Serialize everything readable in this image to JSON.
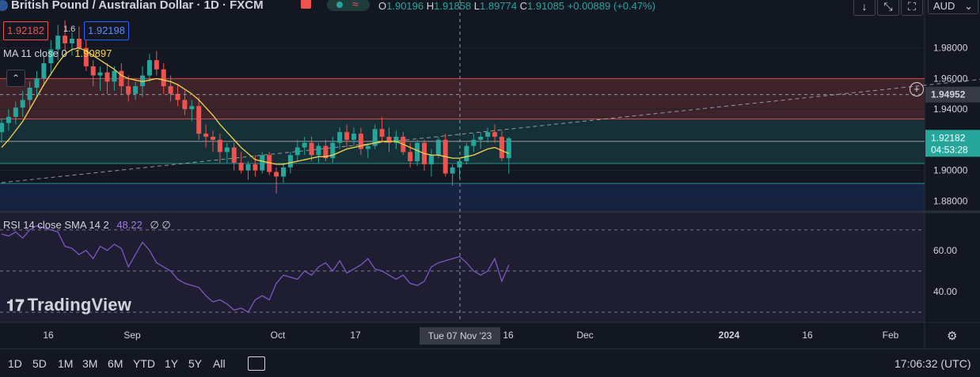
{
  "header": {
    "symbol_title": "British Pound / Australian Dollar · 1D · FXCM",
    "ohlc": {
      "o_label": "O",
      "o_value": "1.90196",
      "h_label": "H",
      "h_value": "1.91858",
      "l_label": "L",
      "l_value": "1.89774",
      "c_label": "C",
      "c_value": "1.91085",
      "change": "+0.00889 (+0.47%)"
    },
    "sell_price": "1.92182",
    "spread": "1.6",
    "buy_price": "1.92198",
    "currency": "AUD"
  },
  "ma_legend": {
    "text": "MA 11 close 0",
    "value": "1.90897"
  },
  "rsi_legend": {
    "text": "RSI 14 close SMA 14 2",
    "value": "48.22",
    "extra": "∅ ∅"
  },
  "price_axis": {
    "ticks": [
      "1.98000",
      "1.96000",
      "1.94000",
      "1.92000",
      "1.90000",
      "1.88000"
    ],
    "crosshair_label": "1.94952",
    "last_price": "1.92182",
    "countdown": "04:53:28"
  },
  "rsi_axis": {
    "ticks": [
      "60.00",
      "40.00"
    ]
  },
  "time_axis": {
    "ticks": [
      "16",
      "Sep",
      "Oct",
      "17",
      "16",
      "Dec",
      "2024",
      "16",
      "Feb"
    ],
    "crosshair_label": "Tue 07 Nov '23"
  },
  "timeframes": [
    "1D",
    "5D",
    "1M",
    "3M",
    "6M",
    "YTD",
    "1Y",
    "5Y",
    "All"
  ],
  "clock": "17:06:32 (UTC)",
  "watermark": "TradingView",
  "colors": {
    "up": "#26a69a",
    "down": "#ef5350",
    "ma": "#f7d54a",
    "rsi": "#7e57c2",
    "bg": "#131722"
  },
  "chart_data": {
    "type": "candlestick",
    "price_ylim": [
      1.874,
      2.002
    ],
    "rsi_ylim": [
      25,
      78
    ],
    "candles": [
      [
        1.925,
        1.934,
        1.918,
        1.931
      ],
      [
        1.931,
        1.94,
        1.926,
        1.935
      ],
      [
        1.935,
        1.945,
        1.93,
        1.941
      ],
      [
        1.941,
        1.952,
        1.935,
        1.946
      ],
      [
        1.946,
        1.958,
        1.94,
        1.954
      ],
      [
        1.954,
        1.965,
        1.948,
        1.96
      ],
      [
        1.96,
        1.975,
        1.955,
        1.97
      ],
      [
        1.97,
        1.985,
        1.962,
        1.979
      ],
      [
        1.979,
        1.995,
        1.972,
        1.988
      ],
      [
        1.988,
        1.998,
        1.978,
        1.983
      ],
      [
        1.983,
        1.99,
        1.975,
        1.986
      ],
      [
        1.986,
        1.994,
        1.978,
        1.98
      ],
      [
        1.98,
        1.985,
        1.965,
        1.968
      ],
      [
        1.968,
        1.972,
        1.955,
        1.962
      ],
      [
        1.962,
        1.968,
        1.952,
        1.964
      ],
      [
        1.964,
        1.97,
        1.95,
        1.958
      ],
      [
        1.958,
        1.968,
        1.952,
        1.965
      ],
      [
        1.965,
        1.97,
        1.95,
        1.955
      ],
      [
        1.955,
        1.962,
        1.945,
        1.95
      ],
      [
        1.95,
        1.958,
        1.946,
        1.955
      ],
      [
        1.955,
        1.968,
        1.948,
        1.962
      ],
      [
        1.962,
        1.976,
        1.958,
        1.972
      ],
      [
        1.972,
        1.978,
        1.962,
        1.966
      ],
      [
        1.966,
        1.97,
        1.95,
        1.955
      ],
      [
        1.955,
        1.962,
        1.945,
        1.95
      ],
      [
        1.95,
        1.956,
        1.942,
        1.946
      ],
      [
        1.946,
        1.952,
        1.936,
        1.94
      ],
      [
        1.94,
        1.946,
        1.932,
        1.942
      ],
      [
        1.942,
        1.948,
        1.92,
        1.924
      ],
      [
        1.924,
        1.93,
        1.915,
        1.922
      ],
      [
        1.922,
        1.926,
        1.912,
        1.92
      ],
      [
        1.92,
        1.924,
        1.905,
        1.912
      ],
      [
        1.912,
        1.918,
        1.905,
        1.915
      ],
      [
        1.915,
        1.918,
        1.9,
        1.905
      ],
      [
        1.905,
        1.912,
        1.898,
        1.9
      ],
      [
        1.9,
        1.906,
        1.894,
        1.904
      ],
      [
        1.904,
        1.91,
        1.896,
        1.9
      ],
      [
        1.9,
        1.912,
        1.898,
        1.91
      ],
      [
        1.91,
        1.912,
        1.897,
        1.899
      ],
      [
        1.899,
        1.902,
        1.885,
        1.896
      ],
      [
        1.896,
        1.905,
        1.892,
        1.902
      ],
      [
        1.902,
        1.912,
        1.898,
        1.91
      ],
      [
        1.91,
        1.92,
        1.906,
        1.915
      ],
      [
        1.915,
        1.922,
        1.91,
        1.918
      ],
      [
        1.918,
        1.922,
        1.906,
        1.91
      ],
      [
        1.91,
        1.918,
        1.905,
        1.916
      ],
      [
        1.916,
        1.92,
        1.906,
        1.908
      ],
      [
        1.908,
        1.922,
        1.905,
        1.918
      ],
      [
        1.918,
        1.928,
        1.914,
        1.925
      ],
      [
        1.925,
        1.93,
        1.915,
        1.92
      ],
      [
        1.92,
        1.928,
        1.916,
        1.924
      ],
      [
        1.924,
        1.928,
        1.91,
        1.914
      ],
      [
        1.914,
        1.918,
        1.908,
        1.916
      ],
      [
        1.916,
        1.93,
        1.914,
        1.927
      ],
      [
        1.927,
        1.935,
        1.918,
        1.922
      ],
      [
        1.922,
        1.928,
        1.912,
        1.918
      ],
      [
        1.918,
        1.926,
        1.914,
        1.922
      ],
      [
        1.922,
        1.925,
        1.91,
        1.912
      ],
      [
        1.912,
        1.918,
        1.902,
        1.906
      ],
      [
        1.906,
        1.92,
        1.903,
        1.918
      ],
      [
        1.918,
        1.92,
        1.9,
        1.904
      ],
      [
        1.904,
        1.914,
        1.896,
        1.91
      ],
      [
        1.91,
        1.922,
        1.908,
        1.92
      ],
      [
        1.92,
        1.924,
        1.896,
        1.898
      ],
      [
        1.898,
        1.904,
        1.89,
        1.902
      ],
      [
        1.902,
        1.908,
        1.895,
        1.906
      ],
      [
        1.906,
        1.918,
        1.904,
        1.916
      ],
      [
        1.916,
        1.924,
        1.912,
        1.92
      ],
      [
        1.92,
        1.925,
        1.914,
        1.922
      ],
      [
        1.922,
        1.928,
        1.918,
        1.925
      ],
      [
        1.925,
        1.93,
        1.918,
        1.922
      ],
      [
        1.922,
        1.926,
        1.906,
        1.908
      ],
      [
        1.908,
        1.922,
        1.898,
        1.921
      ]
    ],
    "ma": [
      1.915,
      1.92,
      1.926,
      1.932,
      1.94,
      1.948,
      1.956,
      1.963,
      1.97,
      1.976,
      1.979,
      1.98,
      1.978,
      1.975,
      1.972,
      1.969,
      1.966,
      1.962,
      1.96,
      1.959,
      1.958,
      1.959,
      1.96,
      1.959,
      1.958,
      1.956,
      1.953,
      1.95,
      1.946,
      1.941,
      1.936,
      1.93,
      1.925,
      1.92,
      1.915,
      1.911,
      1.907,
      1.906,
      1.905,
      1.904,
      1.904,
      1.905,
      1.906,
      1.907,
      1.908,
      1.909,
      1.909,
      1.91,
      1.912,
      1.914,
      1.915,
      1.916,
      1.917,
      1.918,
      1.919,
      1.919,
      1.919,
      1.917,
      1.915,
      1.913,
      1.911,
      1.91,
      1.91,
      1.909,
      1.908,
      1.908,
      1.909,
      1.91,
      1.912,
      1.914,
      1.915,
      1.913,
      1.911
    ],
    "rsi": [
      68,
      67,
      69,
      66,
      70,
      72,
      71,
      70,
      69,
      62,
      61,
      58,
      60,
      56,
      62,
      60,
      63,
      61,
      52,
      58,
      64,
      60,
      54,
      52,
      50,
      46,
      44,
      43,
      42,
      38,
      35,
      36,
      34,
      31,
      32,
      30,
      36,
      38,
      36,
      44,
      48,
      47,
      46,
      50,
      48,
      52,
      54,
      50,
      55,
      49,
      51,
      53,
      56,
      51,
      50,
      48,
      46,
      48,
      44,
      43,
      45,
      52,
      54,
      55,
      56,
      57,
      54,
      50,
      48,
      50,
      56,
      45,
      53
    ],
    "levels": [
      1.96,
      1.9336,
      1.919,
      1.9045,
      1.8915
    ],
    "trendline": {
      "from": [
        0,
        1.892
      ],
      "to": [
        140,
        1.96
      ]
    },
    "rsi_levels": [
      70,
      50,
      30
    ]
  }
}
